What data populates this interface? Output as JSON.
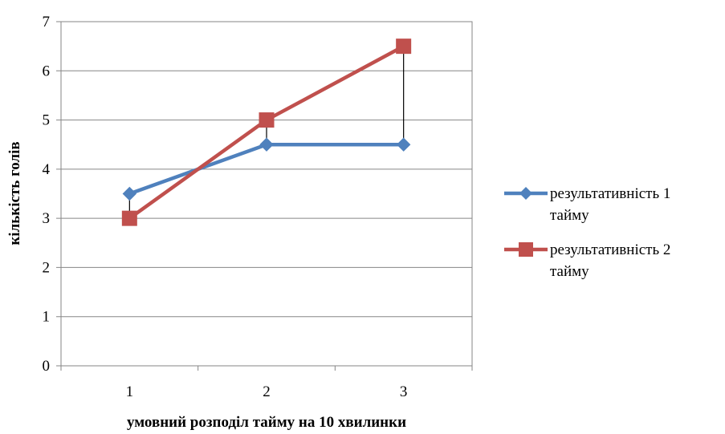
{
  "chart_data": {
    "type": "line",
    "categories": [
      "1",
      "2",
      "3"
    ],
    "series": [
      {
        "name": "результативність 1 тайму",
        "values": [
          3.5,
          4.5,
          4.5
        ],
        "color": "#4F81BD",
        "marker": "diamond",
        "legend_lines": [
          "результативність 1",
          "тайму"
        ]
      },
      {
        "name": "результативність 2 тайму",
        "values": [
          3,
          5,
          6.5
        ],
        "color": "#C0504D",
        "marker": "square",
        "legend_lines": [
          "результативність 2",
          "тайму"
        ]
      }
    ],
    "title": "",
    "xlabel": "умовний розподіл тайму на 10 хвилинки",
    "ylabel": "кількість голів",
    "ylim": [
      0,
      7
    ],
    "yticks": [
      0,
      1,
      2,
      3,
      4,
      5,
      6,
      7
    ],
    "grid": true,
    "high_low_lines": true,
    "legend_position": "right"
  }
}
